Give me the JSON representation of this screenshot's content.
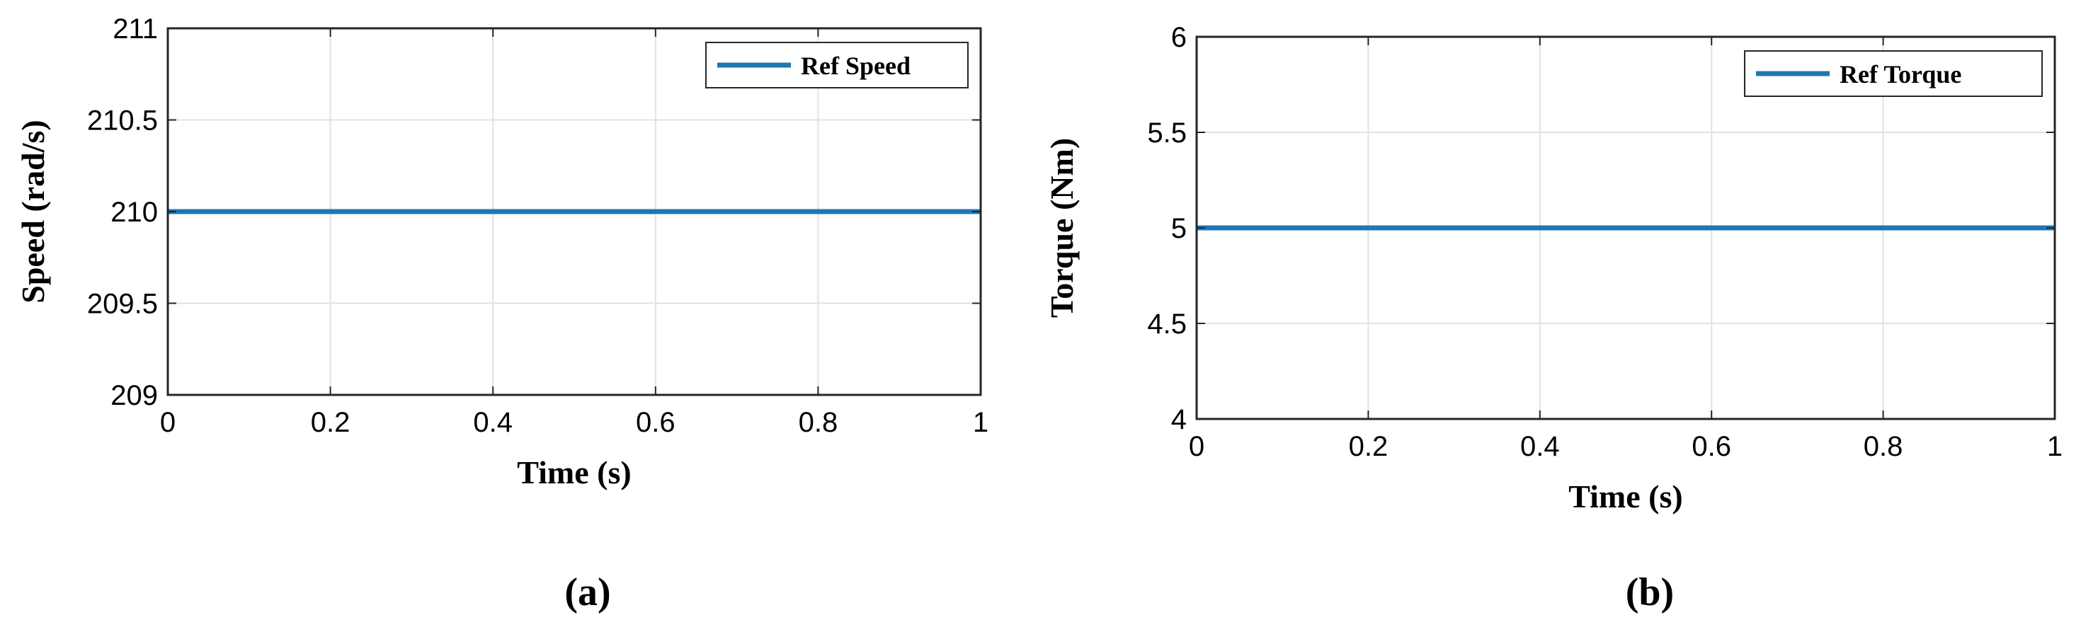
{
  "chart_data": [
    {
      "type": "line",
      "xlabel": "Time (s)",
      "ylabel": "Speed (rad/s)",
      "xlim": [
        0,
        1
      ],
      "ylim": [
        209,
        211
      ],
      "xticks": [
        "0",
        "0.2",
        "0.4",
        "0.6",
        "0.8",
        "1"
      ],
      "yticks": [
        "209",
        "209.5",
        "210",
        "210.5",
        "211"
      ],
      "xtick_values": [
        0,
        0.2,
        0.4,
        0.6,
        0.8,
        1
      ],
      "ytick_values": [
        209,
        209.5,
        210,
        210.5,
        211
      ],
      "grid": true,
      "legend_position": "top-right",
      "series": [
        {
          "name": "Ref Speed",
          "color": "#1f77b4",
          "x": [
            0,
            1
          ],
          "y": [
            210,
            210
          ]
        }
      ],
      "panel_label": "(a)"
    },
    {
      "type": "line",
      "xlabel": "Time (s)",
      "ylabel": "Torque (Nm)",
      "xlim": [
        0,
        1
      ],
      "ylim": [
        4,
        6
      ],
      "xticks": [
        "0",
        "0.2",
        "0.4",
        "0.6",
        "0.8",
        "1"
      ],
      "yticks": [
        "4",
        "4.5",
        "5",
        "5.5",
        "6"
      ],
      "xtick_values": [
        0,
        0.2,
        0.4,
        0.6,
        0.8,
        1
      ],
      "ytick_values": [
        4,
        4.5,
        5,
        5.5,
        6
      ],
      "grid": true,
      "legend_position": "top-right",
      "series": [
        {
          "name": "Ref Torque",
          "color": "#1f77b4",
          "x": [
            0,
            1
          ],
          "y": [
            5,
            5
          ]
        }
      ],
      "panel_label": "(b)"
    }
  ]
}
